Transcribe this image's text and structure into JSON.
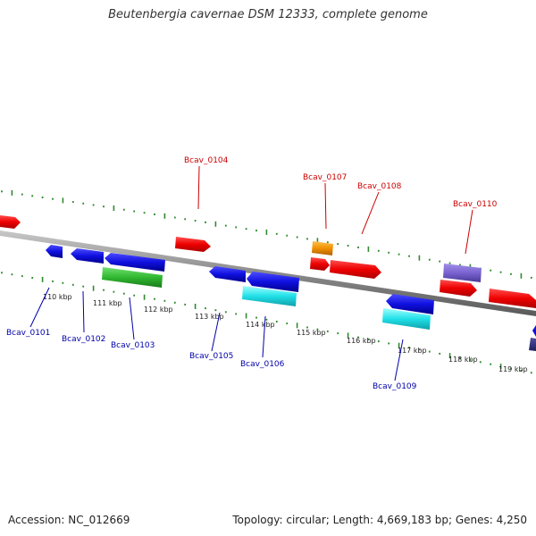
{
  "header": {
    "title": "Beutenbergia cavernae DSM 12333, complete genome"
  },
  "footer": {
    "accession": "Accession: NC_012669",
    "summary": "Topology: circular; Length: 4,669,183 bp; Genes: 4,250"
  },
  "colors": {
    "backbone": "#8a8a8a",
    "tick": "#2e8b2e",
    "label_red": "#cc0000",
    "label_blue": "#0000aa"
  },
  "ticks": {
    "labels": [
      "110 kbp",
      "111 kbp",
      "112 kbp",
      "113 kbp",
      "114 kbp",
      "115 kbp",
      "116 kbp",
      "117 kbp",
      "118 kbp",
      "119 kbp"
    ]
  },
  "genes": [
    {
      "name": "Bcav_0101",
      "color": "#0000aa"
    },
    {
      "name": "Bcav_0102",
      "color": "#0000aa"
    },
    {
      "name": "Bcav_0103",
      "color": "#0000aa"
    },
    {
      "name": "Bcav_0104",
      "color": "#cc0000"
    },
    {
      "name": "Bcav_0105",
      "color": "#0000aa"
    },
    {
      "name": "Bcav_0106",
      "color": "#0000aa"
    },
    {
      "name": "Bcav_0107",
      "color": "#cc0000"
    },
    {
      "name": "Bcav_0108",
      "color": "#cc0000"
    },
    {
      "name": "Bcav_0109",
      "color": "#0000aa"
    },
    {
      "name": "Bcav_0110",
      "color": "#cc0000"
    }
  ]
}
